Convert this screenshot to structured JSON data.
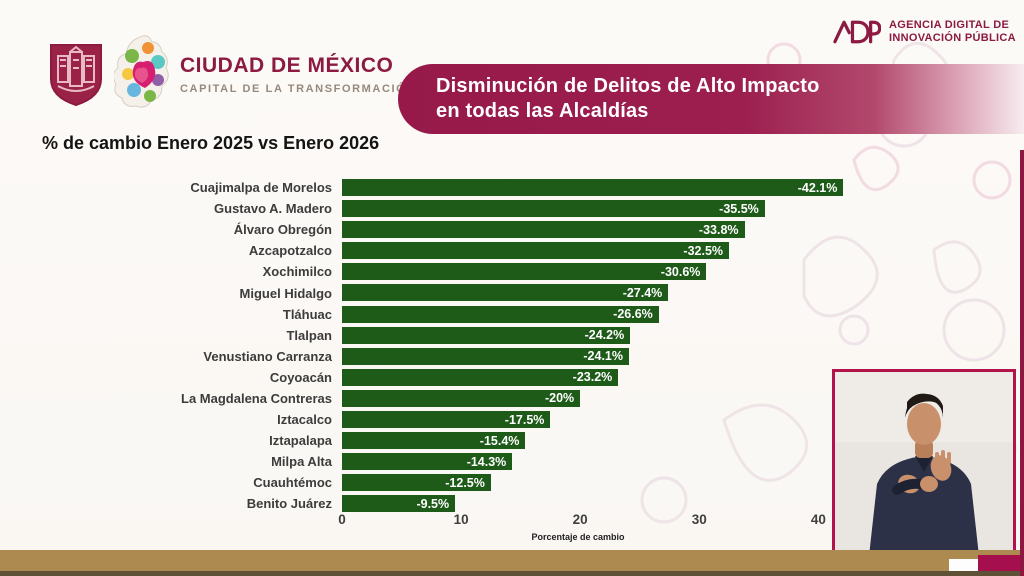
{
  "header": {
    "brand": {
      "title": "CIUDAD DE MÉXICO",
      "subtitle": "CAPITAL DE LA TRANSFORMACIÓN"
    },
    "agency": {
      "line1": "AGENCIA DIGITAL DE",
      "line2": "INNOVACIÓN PÚBLICA"
    }
  },
  "banner": {
    "line1": "Disminución de Delitos de Alto Impacto",
    "line2": "en todas las Alcaldías"
  },
  "chart_data": {
    "type": "bar",
    "orientation": "horizontal",
    "title": "% de cambio Enero 2025 vs Enero 2026",
    "categories": [
      "Cuajimalpa de Morelos",
      "Gustavo A. Madero",
      "Álvaro Obregón",
      "Azcapotzalco",
      "Xochimilco",
      "Miguel Hidalgo",
      "Tláhuac",
      "Tlalpan",
      "Venustiano Carranza",
      "Coyoacán",
      "La Magdalena Contreras",
      "Iztacalco",
      "Iztapalapa",
      "Milpa Alta",
      "Cuauhtémoc",
      "Benito Juárez"
    ],
    "values": [
      -42.1,
      -35.5,
      -33.8,
      -32.5,
      -30.6,
      -27.4,
      -26.6,
      -24.2,
      -24.1,
      -23.2,
      -20,
      -17.5,
      -15.4,
      -14.3,
      -12.5,
      -9.5
    ],
    "labels": [
      "-42.1%",
      "-35.5%",
      "-33.8%",
      "-32.5%",
      "-30.6%",
      "-27.4%",
      "-26.6%",
      "-24.2%",
      "-24.1%",
      "-23.2%",
      "-20%",
      "-17.5%",
      "-15.4%",
      "-14.3%",
      "-12.5%",
      "-9.5%"
    ],
    "xlabel": "Porcentaje de cambio",
    "xticks": [
      0,
      10,
      20,
      30,
      40
    ],
    "xlim": [
      0,
      44
    ],
    "bar_color": "#1e5b18",
    "grid": false,
    "legend": "none"
  },
  "colors": {
    "banner_maroon": "#96194a",
    "brand_maroon": "#8c1a42",
    "bar_green": "#1e5b18",
    "strip_gold": "#ad8b50",
    "strip_crimson": "#a50f4d"
  },
  "interpreter": {
    "label": "sign-language-interpreter-video"
  }
}
